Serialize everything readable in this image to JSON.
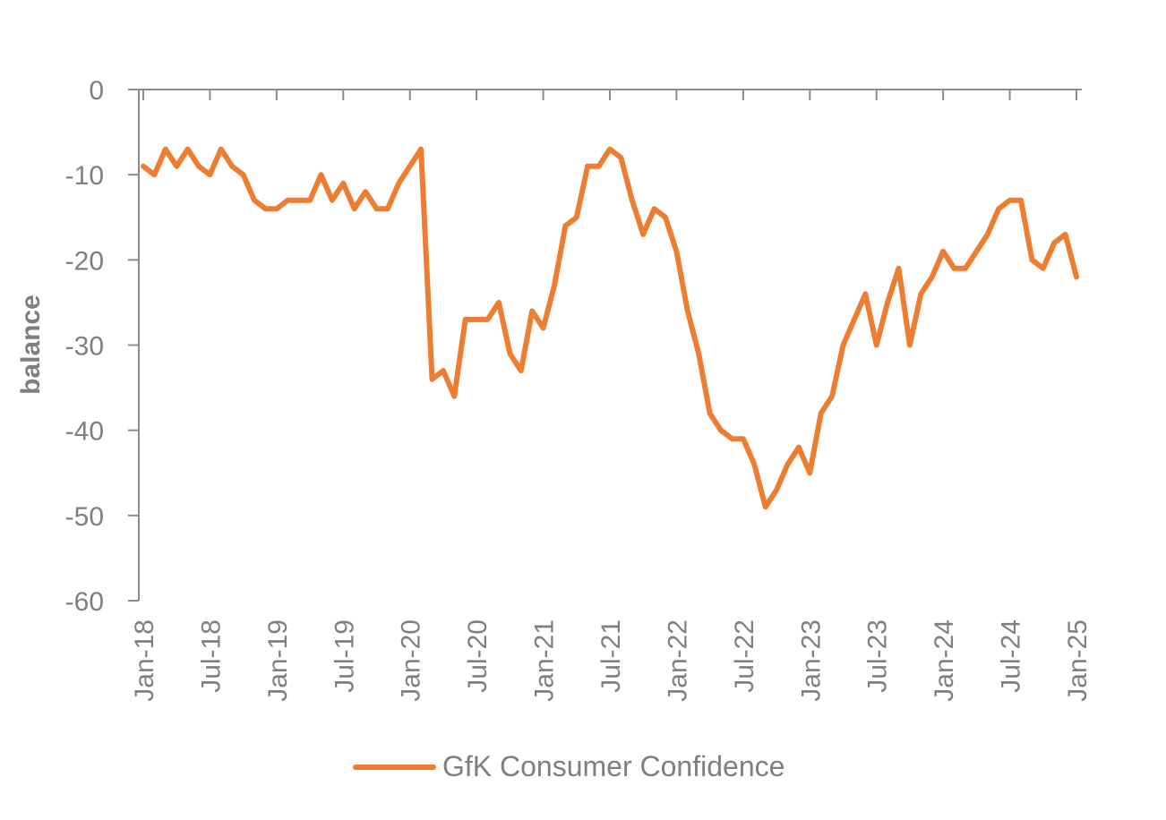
{
  "chart_data": {
    "type": "line",
    "ylabel": "balance",
    "xlabel": "",
    "ylim": [
      -60,
      0
    ],
    "y_ticks": [
      0,
      -10,
      -20,
      -30,
      -40,
      -50,
      -60
    ],
    "x_tick_labels": [
      "Jan-18",
      "Jul-18",
      "Jan-19",
      "Jul-19",
      "Jan-20",
      "Jul-20",
      "Jan-21",
      "Jul-21",
      "Jan-22",
      "Jul-22",
      "Jan-23",
      "Jul-23",
      "Jan-24",
      "Jul-24",
      "Jan-25"
    ],
    "x_start": "2018-01",
    "x_end": "2025-01",
    "grid": false,
    "legend_position": "bottom",
    "series": [
      {
        "name": "GfK Consumer Confidence",
        "color": "#ed7d31",
        "x": [
          "2018-01",
          "2018-02",
          "2018-03",
          "2018-04",
          "2018-05",
          "2018-06",
          "2018-07",
          "2018-08",
          "2018-09",
          "2018-10",
          "2018-11",
          "2018-12",
          "2019-01",
          "2019-02",
          "2019-03",
          "2019-04",
          "2019-05",
          "2019-06",
          "2019-07",
          "2019-08",
          "2019-09",
          "2019-10",
          "2019-11",
          "2019-12",
          "2020-01",
          "2020-02",
          "2020-03",
          "2020-04",
          "2020-05",
          "2020-06",
          "2020-07",
          "2020-08",
          "2020-09",
          "2020-10",
          "2020-11",
          "2020-12",
          "2021-01",
          "2021-02",
          "2021-03",
          "2021-04",
          "2021-05",
          "2021-06",
          "2021-07",
          "2021-08",
          "2021-09",
          "2021-10",
          "2021-11",
          "2021-12",
          "2022-01",
          "2022-02",
          "2022-03",
          "2022-04",
          "2022-05",
          "2022-06",
          "2022-07",
          "2022-08",
          "2022-09",
          "2022-10",
          "2022-11",
          "2022-12",
          "2023-01",
          "2023-02",
          "2023-03",
          "2023-04",
          "2023-05",
          "2023-06",
          "2023-07",
          "2023-08",
          "2023-09",
          "2023-10",
          "2023-11",
          "2023-12",
          "2024-01",
          "2024-02",
          "2024-03",
          "2024-04",
          "2024-05",
          "2024-06",
          "2024-07",
          "2024-08",
          "2024-09",
          "2024-10",
          "2024-11",
          "2024-12",
          "2025-01"
        ],
        "values": [
          -9,
          -10,
          -7,
          -9,
          -7,
          -9,
          -10,
          -7,
          -9,
          -10,
          -13,
          -14,
          -14,
          -13,
          -13,
          -13,
          -10,
          -13,
          -11,
          -14,
          -12,
          -14,
          -14,
          -11,
          -9,
          -7,
          -34,
          -33,
          -36,
          -27,
          -27,
          -27,
          -25,
          -31,
          -33,
          -26,
          -28,
          -23,
          -16,
          -15,
          -9,
          -9,
          -7,
          -8,
          -13,
          -17,
          -14,
          -15,
          -19,
          -26,
          -31,
          -38,
          -40,
          -41,
          -41,
          -44,
          -49,
          -47,
          -44,
          -42,
          -45,
          -38,
          -36,
          -30,
          -27,
          -24,
          -30,
          -25,
          -21,
          -30,
          -24,
          -22,
          -19,
          -21,
          -21,
          -19,
          -17,
          -14,
          -13,
          -13,
          -20,
          -21,
          -18,
          -17,
          -22
        ]
      }
    ]
  }
}
